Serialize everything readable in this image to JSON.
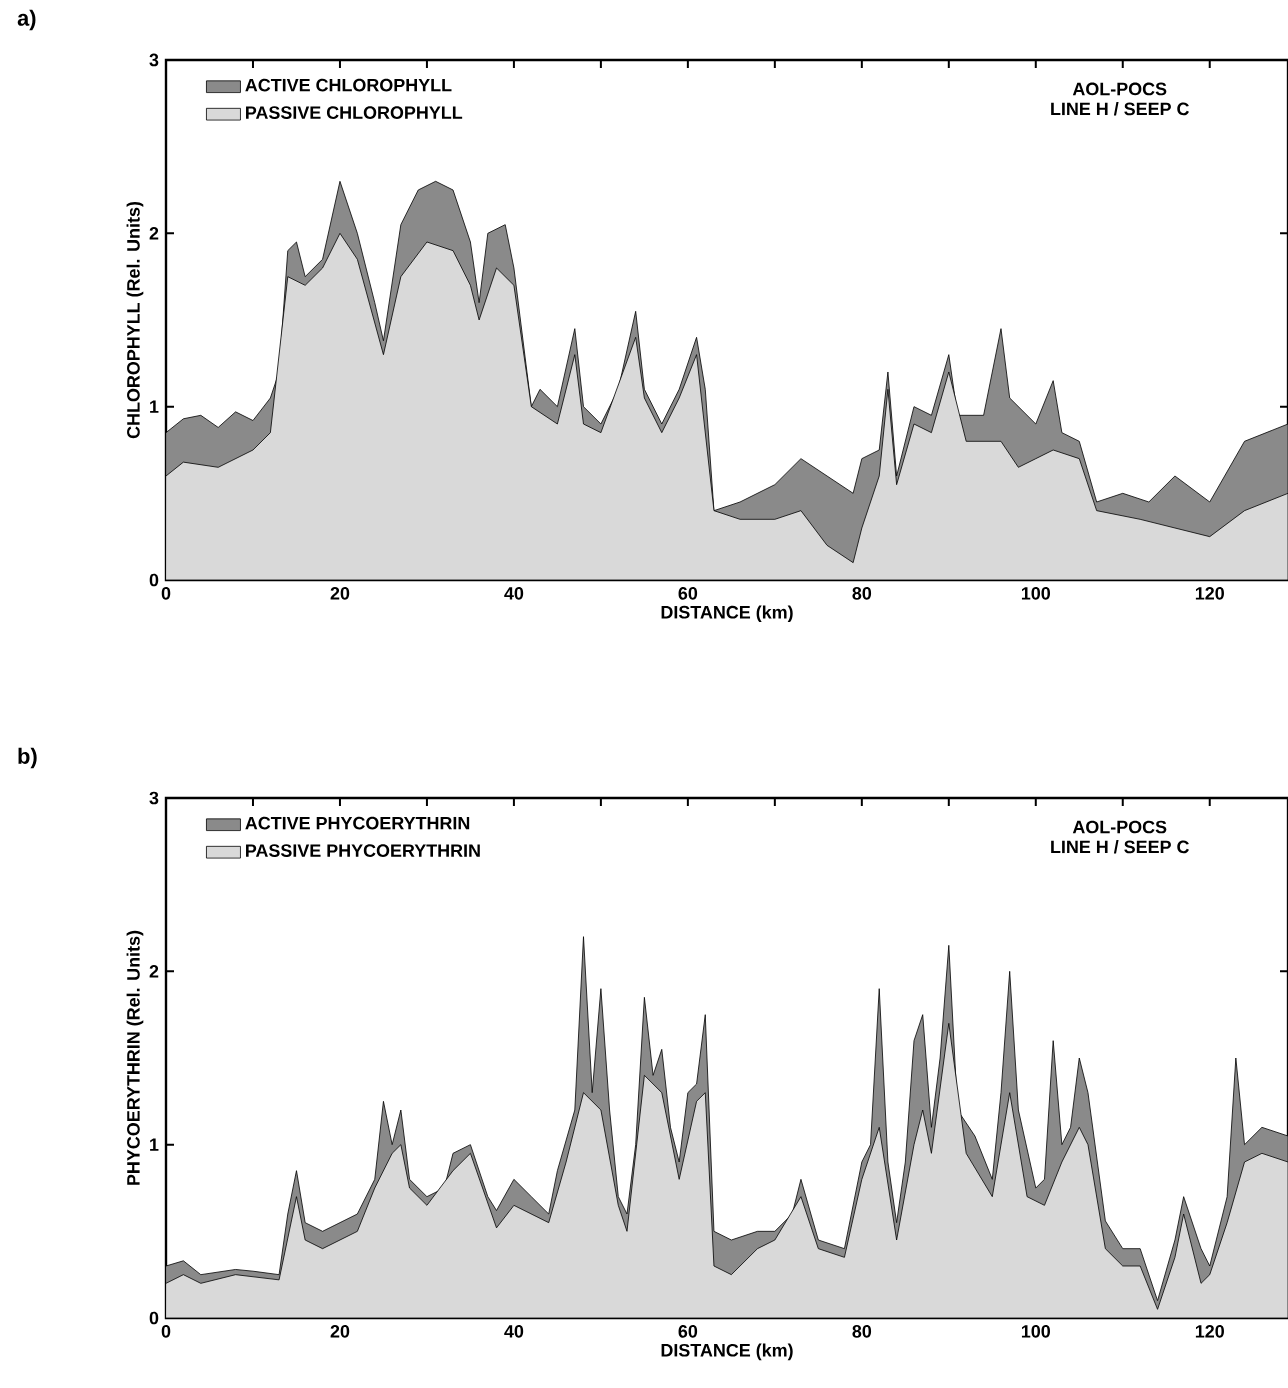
{
  "chart_data": [
    {
      "type": "area",
      "title": "a)",
      "xlabel": "DISTANCE (km)",
      "ylabel": "CHLOROPHYLL (Rel. Units)",
      "annotations": [
        "AOL-POCS",
        "LINE H / SEEP C"
      ],
      "xlim": [
        0,
        129
      ],
      "xticks": [
        0,
        {
          "value": 10,
          "label": null
        },
        20,
        {
          "value": 30,
          "label": null
        },
        40,
        {
          "value": 50,
          "label": null
        },
        60,
        {
          "value": 70,
          "label": null
        },
        80,
        {
          "value": 90,
          "label": null
        },
        100,
        {
          "value": 110,
          "label": null
        },
        120
      ],
      "ylim": [
        0,
        3
      ],
      "yticks": [
        0,
        1,
        2,
        3
      ],
      "legend": "top left",
      "series": [
        {
          "name": "ACTIVE CHLOROPHYLL",
          "color": "#8a8a8a",
          "x": [
            0,
            2,
            4,
            6,
            8,
            10,
            12,
            13,
            14,
            15,
            16,
            18,
            20,
            22,
            24,
            25,
            27,
            29,
            31,
            33,
            35,
            36,
            37,
            39,
            40,
            42,
            43,
            45,
            47,
            48,
            50,
            52,
            54,
            55,
            57,
            59,
            61,
            62,
            63,
            66,
            70,
            73,
            76,
            79,
            80,
            82,
            83,
            84,
            86,
            88,
            90,
            91,
            94,
            96,
            97,
            100,
            102,
            103,
            105,
            107,
            110,
            113,
            116,
            120,
            124,
            129
          ],
          "values": [
            0.85,
            0.93,
            0.95,
            0.88,
            0.97,
            0.92,
            1.05,
            1.2,
            1.9,
            1.95,
            1.75,
            1.85,
            2.3,
            2.0,
            1.6,
            1.38,
            2.05,
            2.25,
            2.3,
            2.25,
            1.95,
            1.6,
            2.0,
            2.05,
            1.8,
            1.0,
            1.1,
            1.0,
            1.45,
            1.0,
            0.9,
            1.1,
            1.55,
            1.1,
            0.9,
            1.1,
            1.4,
            1.1,
            0.4,
            0.45,
            0.55,
            0.7,
            0.6,
            0.5,
            0.7,
            0.75,
            1.2,
            0.6,
            1.0,
            0.95,
            1.3,
            0.95,
            0.95,
            1.45,
            1.05,
            0.9,
            1.15,
            0.85,
            0.8,
            0.45,
            0.5,
            0.45,
            0.6,
            0.45,
            0.8,
            0.9
          ]
        },
        {
          "name": "PASSIVE CHLOROPHYLL",
          "color": "#d9d9d9",
          "x": [
            0,
            2,
            6,
            10,
            12,
            14,
            16,
            18,
            20,
            22,
            25,
            27,
            30,
            33,
            35,
            36,
            38,
            40,
            42,
            45,
            47,
            48,
            50,
            54,
            55,
            57,
            59,
            61,
            63,
            66,
            70,
            73,
            76,
            79,
            80,
            82,
            83,
            84,
            86,
            88,
            90,
            92,
            96,
            98,
            100,
            102,
            105,
            107,
            112,
            116,
            120,
            124,
            129
          ],
          "values": [
            0.6,
            0.68,
            0.65,
            0.75,
            0.85,
            1.75,
            1.7,
            1.8,
            2.0,
            1.85,
            1.3,
            1.75,
            1.95,
            1.9,
            1.7,
            1.5,
            1.8,
            1.7,
            1.0,
            0.9,
            1.3,
            0.9,
            0.85,
            1.4,
            1.05,
            0.85,
            1.05,
            1.3,
            0.4,
            0.35,
            0.35,
            0.4,
            0.2,
            0.1,
            0.3,
            0.6,
            1.1,
            0.55,
            0.9,
            0.85,
            1.2,
            0.8,
            0.8,
            0.65,
            0.7,
            0.75,
            0.7,
            0.4,
            0.35,
            0.3,
            0.25,
            0.4,
            0.5
          ]
        }
      ]
    },
    {
      "type": "area",
      "title": "b)",
      "xlabel": "DISTANCE (km)",
      "ylabel": "PHYCOERYTHRIN (Rel. Units)",
      "annotations": [
        "AOL-POCS",
        "LINE H / SEEP C"
      ],
      "xlim": [
        0,
        129
      ],
      "xticks": [
        0,
        {
          "value": 10,
          "label": null
        },
        20,
        {
          "value": 30,
          "label": null
        },
        40,
        {
          "value": 50,
          "label": null
        },
        60,
        {
          "value": 70,
          "label": null
        },
        80,
        {
          "value": 90,
          "label": null
        },
        100,
        {
          "value": 110,
          "label": null
        },
        120
      ],
      "ylim": [
        0,
        3
      ],
      "yticks": [
        0,
        1,
        2,
        3
      ],
      "legend": "top left",
      "series": [
        {
          "name": "ACTIVE PHYCOERYTHRIN",
          "color": "#8a8a8a",
          "x": [
            0,
            2,
            4,
            8,
            10,
            13,
            14,
            15,
            16,
            18,
            22,
            24,
            25,
            26,
            27,
            28,
            30,
            32,
            33,
            35,
            37,
            38,
            40,
            42,
            44,
            45,
            47,
            48,
            49,
            50,
            51,
            52,
            53,
            54,
            55,
            56,
            57,
            58,
            59,
            60,
            61,
            62,
            63,
            65,
            68,
            70,
            72,
            73,
            75,
            78,
            80,
            81,
            82,
            83,
            84,
            85,
            86,
            87,
            88,
            89,
            90,
            91,
            93,
            95,
            96,
            97,
            98,
            100,
            101,
            102,
            103,
            104,
            105,
            106,
            108,
            110,
            112,
            114,
            116,
            117,
            119,
            120,
            122,
            123,
            124,
            126,
            129
          ],
          "values": [
            0.3,
            0.33,
            0.25,
            0.28,
            0.27,
            0.25,
            0.6,
            0.85,
            0.55,
            0.5,
            0.6,
            0.8,
            1.25,
            1.0,
            1.2,
            0.8,
            0.7,
            0.75,
            0.95,
            1.0,
            0.7,
            0.62,
            0.8,
            0.7,
            0.6,
            0.85,
            1.2,
            2.2,
            1.3,
            1.9,
            1.2,
            0.7,
            0.6,
            1.0,
            1.85,
            1.4,
            1.55,
            1.1,
            0.9,
            1.3,
            1.35,
            1.75,
            0.5,
            0.45,
            0.5,
            0.5,
            0.6,
            0.8,
            0.45,
            0.4,
            0.9,
            1.0,
            1.9,
            0.9,
            0.55,
            0.9,
            1.6,
            1.75,
            1.1,
            1.5,
            2.15,
            1.2,
            1.05,
            0.8,
            1.3,
            2.0,
            1.2,
            0.75,
            0.8,
            1.6,
            1.0,
            1.1,
            1.5,
            1.3,
            0.56,
            0.4,
            0.4,
            0.1,
            0.45,
            0.7,
            0.4,
            0.3,
            0.7,
            1.5,
            1.0,
            1.1,
            1.05
          ]
        },
        {
          "name": "PASSIVE PHYCOERYTHRIN",
          "color": "#d9d9d9",
          "x": [
            0,
            2,
            4,
            8,
            13,
            15,
            16,
            18,
            22,
            24,
            26,
            27,
            28,
            30,
            33,
            35,
            38,
            40,
            44,
            46,
            48,
            50,
            52,
            53,
            55,
            57,
            59,
            61,
            62,
            63,
            65,
            68,
            70,
            73,
            75,
            78,
            80,
            82,
            84,
            86,
            87,
            88,
            90,
            92,
            95,
            97,
            99,
            101,
            103,
            105,
            106,
            108,
            110,
            112,
            114,
            116,
            117,
            119,
            120,
            122,
            124,
            126,
            129
          ],
          "values": [
            0.2,
            0.25,
            0.2,
            0.25,
            0.22,
            0.7,
            0.45,
            0.4,
            0.5,
            0.75,
            0.95,
            1.0,
            0.75,
            0.65,
            0.85,
            0.95,
            0.52,
            0.65,
            0.55,
            0.9,
            1.3,
            1.2,
            0.65,
            0.5,
            1.4,
            1.3,
            0.8,
            1.25,
            1.3,
            0.3,
            0.25,
            0.4,
            0.45,
            0.7,
            0.4,
            0.35,
            0.8,
            1.1,
            0.45,
            1.0,
            1.2,
            0.95,
            1.7,
            0.95,
            0.7,
            1.3,
            0.7,
            0.65,
            0.9,
            1.1,
            1.0,
            0.4,
            0.3,
            0.3,
            0.05,
            0.35,
            0.6,
            0.2,
            0.25,
            0.55,
            0.9,
            0.95,
            0.9
          ]
        }
      ]
    }
  ]
}
